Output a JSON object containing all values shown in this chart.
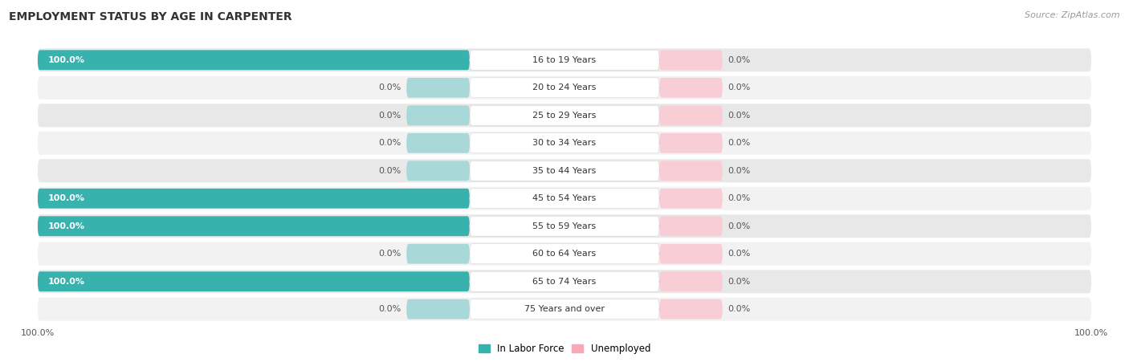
{
  "title": "EMPLOYMENT STATUS BY AGE IN CARPENTER",
  "source": "Source: ZipAtlas.com",
  "age_groups": [
    "16 to 19 Years",
    "20 to 24 Years",
    "25 to 29 Years",
    "30 to 34 Years",
    "35 to 44 Years",
    "45 to 54 Years",
    "55 to 59 Years",
    "60 to 64 Years",
    "65 to 74 Years",
    "75 Years and over"
  ],
  "labor_force": [
    100.0,
    0.0,
    0.0,
    0.0,
    0.0,
    100.0,
    100.0,
    0.0,
    100.0,
    0.0
  ],
  "unemployed": [
    0.0,
    0.0,
    0.0,
    0.0,
    0.0,
    0.0,
    0.0,
    0.0,
    0.0,
    0.0
  ],
  "labor_force_color": "#38b2ac",
  "unemployed_color": "#f9a8b8",
  "bar_bg_teal": "#a8d8d8",
  "bar_bg_pink": "#f9cdd6",
  "row_bg_dark": "#e8e8e8",
  "row_bg_light": "#f2f2f2",
  "label_bg": "#ffffff",
  "title_fontsize": 10,
  "source_fontsize": 8,
  "label_fontsize": 8,
  "bar_height": 0.72,
  "legend_labels": [
    "In Labor Force",
    "Unemployed"
  ]
}
